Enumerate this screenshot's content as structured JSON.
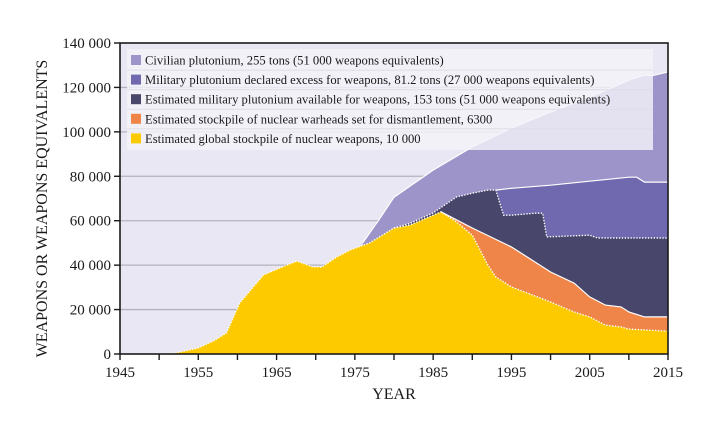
{
  "chart_data": {
    "type": "area",
    "stacked": true,
    "title": "",
    "xlabel": "YEAR",
    "ylabel": "WEAPONS OR WEAPONS EQUIVALENTS",
    "xlim": [
      1945,
      2015
    ],
    "ylim": [
      0,
      140000
    ],
    "x_ticks": [
      1945,
      1950,
      1955,
      1960,
      1965,
      1970,
      1975,
      1980,
      1985,
      1990,
      1995,
      2000,
      2005,
      2010,
      2015
    ],
    "x_tick_labels": [
      "1945",
      "1955",
      "1965",
      "1975",
      "1985",
      "1995",
      "2005",
      "2015"
    ],
    "x_tick_label_values": [
      1945,
      1955,
      1965,
      1975,
      1985,
      1995,
      2005,
      2015
    ],
    "y_ticks": [
      0,
      20000,
      40000,
      60000,
      80000,
      100000,
      120000,
      140000
    ],
    "y_tick_labels": [
      "0",
      "20 000",
      "40 000",
      "60 000",
      "80 000",
      "100 000",
      "120 000",
      "140 000"
    ],
    "grid": "horizontal",
    "legend_position": "top",
    "background_color": "#e8e7f3",
    "note": "Series values are cumulative (top edge of each stacked band).",
    "series": [
      {
        "name": "Civilian plutonium, 255 tons (51 000 weapons equivalents)",
        "color": "#9d95c9",
        "border": "solid",
        "points": [
          [
            1976,
            50000
          ],
          [
            1978,
            60000
          ],
          [
            1980,
            70600
          ],
          [
            1985,
            82800
          ],
          [
            1990,
            93200
          ],
          [
            1995,
            101700
          ],
          [
            2000,
            109000
          ],
          [
            2005,
            115600
          ],
          [
            2010,
            123300
          ],
          [
            2012,
            125500
          ],
          [
            2013,
            125300
          ],
          [
            2015,
            127000
          ]
        ]
      },
      {
        "name": "Military plutonium declared excess for weapons, 81.2 tons (27 000 weapons equivalents)",
        "color": "#7069af",
        "border": "solid",
        "points": [
          [
            1993,
            73800
          ],
          [
            1995,
            74600
          ],
          [
            2000,
            76000
          ],
          [
            2005,
            77800
          ],
          [
            2010,
            79600
          ],
          [
            2011,
            79600
          ],
          [
            2012,
            77400
          ],
          [
            2015,
            77400
          ]
        ]
      },
      {
        "name": "Estimated military plutonium available for weapons, 153 tons (51 000 weapons equivalents)",
        "color": "#49466b",
        "border": "dotted",
        "points": [
          [
            1980,
            56700
          ],
          [
            1982,
            58800
          ],
          [
            1985,
            63500
          ],
          [
            1988,
            70700
          ],
          [
            1990,
            72400
          ],
          [
            1992,
            73800
          ],
          [
            1993,
            73800
          ],
          [
            1994,
            62500
          ],
          [
            1995,
            62500
          ],
          [
            1998,
            63400
          ],
          [
            1999,
            63400
          ],
          [
            1999.5,
            52700
          ],
          [
            2005,
            53500
          ],
          [
            2006,
            52200
          ],
          [
            2015,
            52200
          ]
        ]
      },
      {
        "name": "Estimated stockpile of nuclear warheads set for dismantlement, 6300",
        "color": "#f0854a",
        "border": "solid",
        "points": [
          [
            1986,
            64000
          ],
          [
            1990,
            56700
          ],
          [
            1995,
            48200
          ],
          [
            2000,
            36900
          ],
          [
            2003,
            31900
          ],
          [
            2005,
            25700
          ],
          [
            2007,
            22000
          ],
          [
            2009,
            21200
          ],
          [
            2010,
            18900
          ],
          [
            2012,
            16700
          ],
          [
            2015,
            16700
          ]
        ]
      },
      {
        "name": "Estimated global stockpile of nuclear weapons, 10 000",
        "color": "#fdca00",
        "border": "dotted",
        "points": [
          [
            1945,
            0
          ],
          [
            1950,
            0
          ],
          [
            1952,
            400
          ],
          [
            1955,
            2700
          ],
          [
            1957,
            6000
          ],
          [
            1958.6,
            9500
          ],
          [
            1960.3,
            23000
          ],
          [
            1963.3,
            35500
          ],
          [
            1965.4,
            38700
          ],
          [
            1967.6,
            41800
          ],
          [
            1969.6,
            39200
          ],
          [
            1970.8,
            39200
          ],
          [
            1972.7,
            43700
          ],
          [
            1974.4,
            46800
          ],
          [
            1976.9,
            50000
          ],
          [
            1980,
            56700
          ],
          [
            1982,
            58000
          ],
          [
            1985,
            62500
          ],
          [
            1986,
            64000
          ],
          [
            1988,
            59400
          ],
          [
            1990,
            53500
          ],
          [
            1991,
            46800
          ],
          [
            1992,
            40000
          ],
          [
            1993,
            34700
          ],
          [
            1995,
            30200
          ],
          [
            2000,
            23400
          ],
          [
            2003,
            18900
          ],
          [
            2005,
            16700
          ],
          [
            2007,
            13000
          ],
          [
            2009,
            12200
          ],
          [
            2010,
            11200
          ],
          [
            2015,
            10300
          ]
        ]
      }
    ]
  }
}
